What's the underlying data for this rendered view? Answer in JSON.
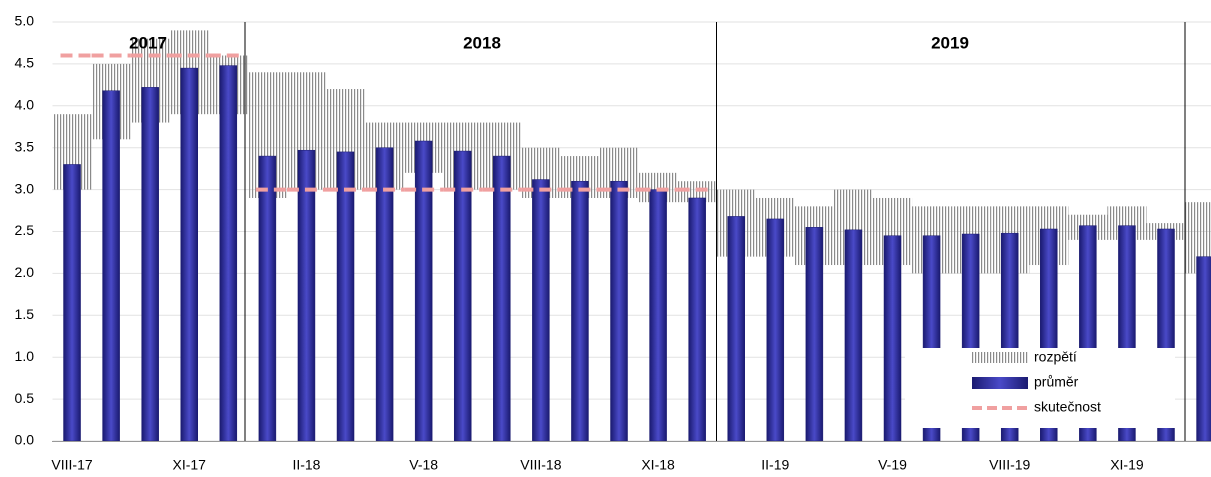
{
  "chart_data": {
    "type": "bar",
    "categories": [
      "VIII-17",
      null,
      null,
      "XI-17",
      null,
      null,
      "II-18",
      null,
      null,
      "V-18",
      null,
      null,
      "VIII-18",
      null,
      null,
      "XI-18",
      null,
      null,
      "II-19",
      null,
      null,
      "V-19",
      null,
      null,
      "VIII-19",
      null,
      null,
      "XI-19",
      null,
      null
    ],
    "series": [
      {
        "name": "rozpětí",
        "type": "range",
        "color": "#8a8a8a",
        "low": [
          3.0,
          3.6,
          3.8,
          3.9,
          3.9,
          2.9,
          3.0,
          3.0,
          3.0,
          3.2,
          3.0,
          3.0,
          2.9,
          2.9,
          2.9,
          2.85,
          2.85,
          2.2,
          2.2,
          2.1,
          2.1,
          2.1,
          2.0,
          2.0,
          2.0,
          2.1,
          2.4,
          2.4,
          2.4,
          2.0
        ],
        "high": [
          3.9,
          4.5,
          4.8,
          4.9,
          4.6,
          4.4,
          4.4,
          4.2,
          3.8,
          3.8,
          3.8,
          3.8,
          3.5,
          3.4,
          3.5,
          3.2,
          3.1,
          3.0,
          2.9,
          2.8,
          3.0,
          2.9,
          2.8,
          2.8,
          2.8,
          2.8,
          2.7,
          2.8,
          2.6,
          2.85
        ]
      },
      {
        "name": "průměr",
        "type": "bar",
        "color": "#2b2b9a",
        "values": [
          3.3,
          4.18,
          4.22,
          4.45,
          4.48,
          3.4,
          3.47,
          3.45,
          3.5,
          3.58,
          3.46,
          3.4,
          3.12,
          3.1,
          3.1,
          3.0,
          2.9,
          2.68,
          2.65,
          2.55,
          2.52,
          2.45,
          2.45,
          2.47,
          2.48,
          2.53,
          2.57,
          2.57,
          2.53,
          2.2
        ]
      },
      {
        "name": "skutečnost",
        "type": "step",
        "color": "#f0a0a0",
        "values": [
          4.6,
          4.6,
          4.6,
          4.6,
          4.6,
          3.0,
          3.0,
          3.0,
          3.0,
          3.0,
          3.0,
          3.0,
          3.0,
          3.0,
          3.0,
          3.0,
          3.0,
          null,
          null,
          null,
          null,
          null,
          null,
          null,
          null,
          null,
          null,
          null,
          null,
          null
        ]
      }
    ],
    "year_labels": [
      "2017",
      "2018",
      "2019"
    ],
    "ylim": [
      0,
      5
    ],
    "yticks": [
      {
        "value": 0,
        "label": "0.0"
      },
      {
        "value": 0.5,
        "label": "0.5"
      },
      {
        "value": 1,
        "label": "1.0"
      },
      {
        "value": 1.5,
        "label": "1.5"
      },
      {
        "value": 2,
        "label": "2.0"
      },
      {
        "value": 2.5,
        "label": "2.5"
      },
      {
        "value": 3,
        "label": "3.0"
      },
      {
        "value": 3.5,
        "label": "3.5"
      },
      {
        "value": 4,
        "label": "4.0"
      },
      {
        "value": 4.5,
        "label": "4.5"
      },
      {
        "value": 5,
        "label": "5.0"
      }
    ],
    "grid": true,
    "legend": "lower right"
  }
}
